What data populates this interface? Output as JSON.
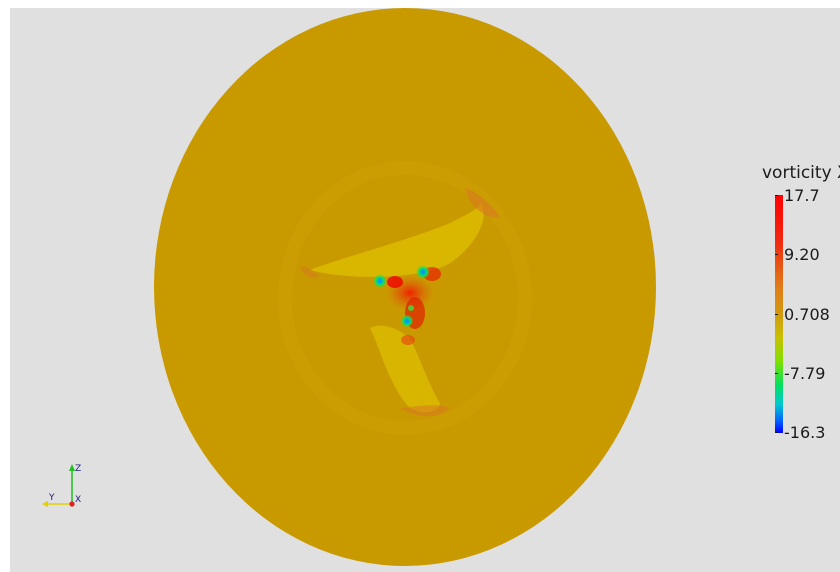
{
  "colorbar": {
    "title": "vorticity X",
    "labels": [
      "17.7",
      "9.20",
      "0.708",
      "-7.79",
      "-16.3"
    ]
  },
  "axes": {
    "z_label": "Z",
    "y_label": "Y",
    "x_label": "X"
  },
  "colors": {
    "background": "#e0e0e0",
    "disk_fill": "#c99a00",
    "colormap_max": "#ff0000",
    "colormap_min": "#0000ff"
  },
  "icons": {
    "orientation_axes": "xyz-axes-icon"
  }
}
